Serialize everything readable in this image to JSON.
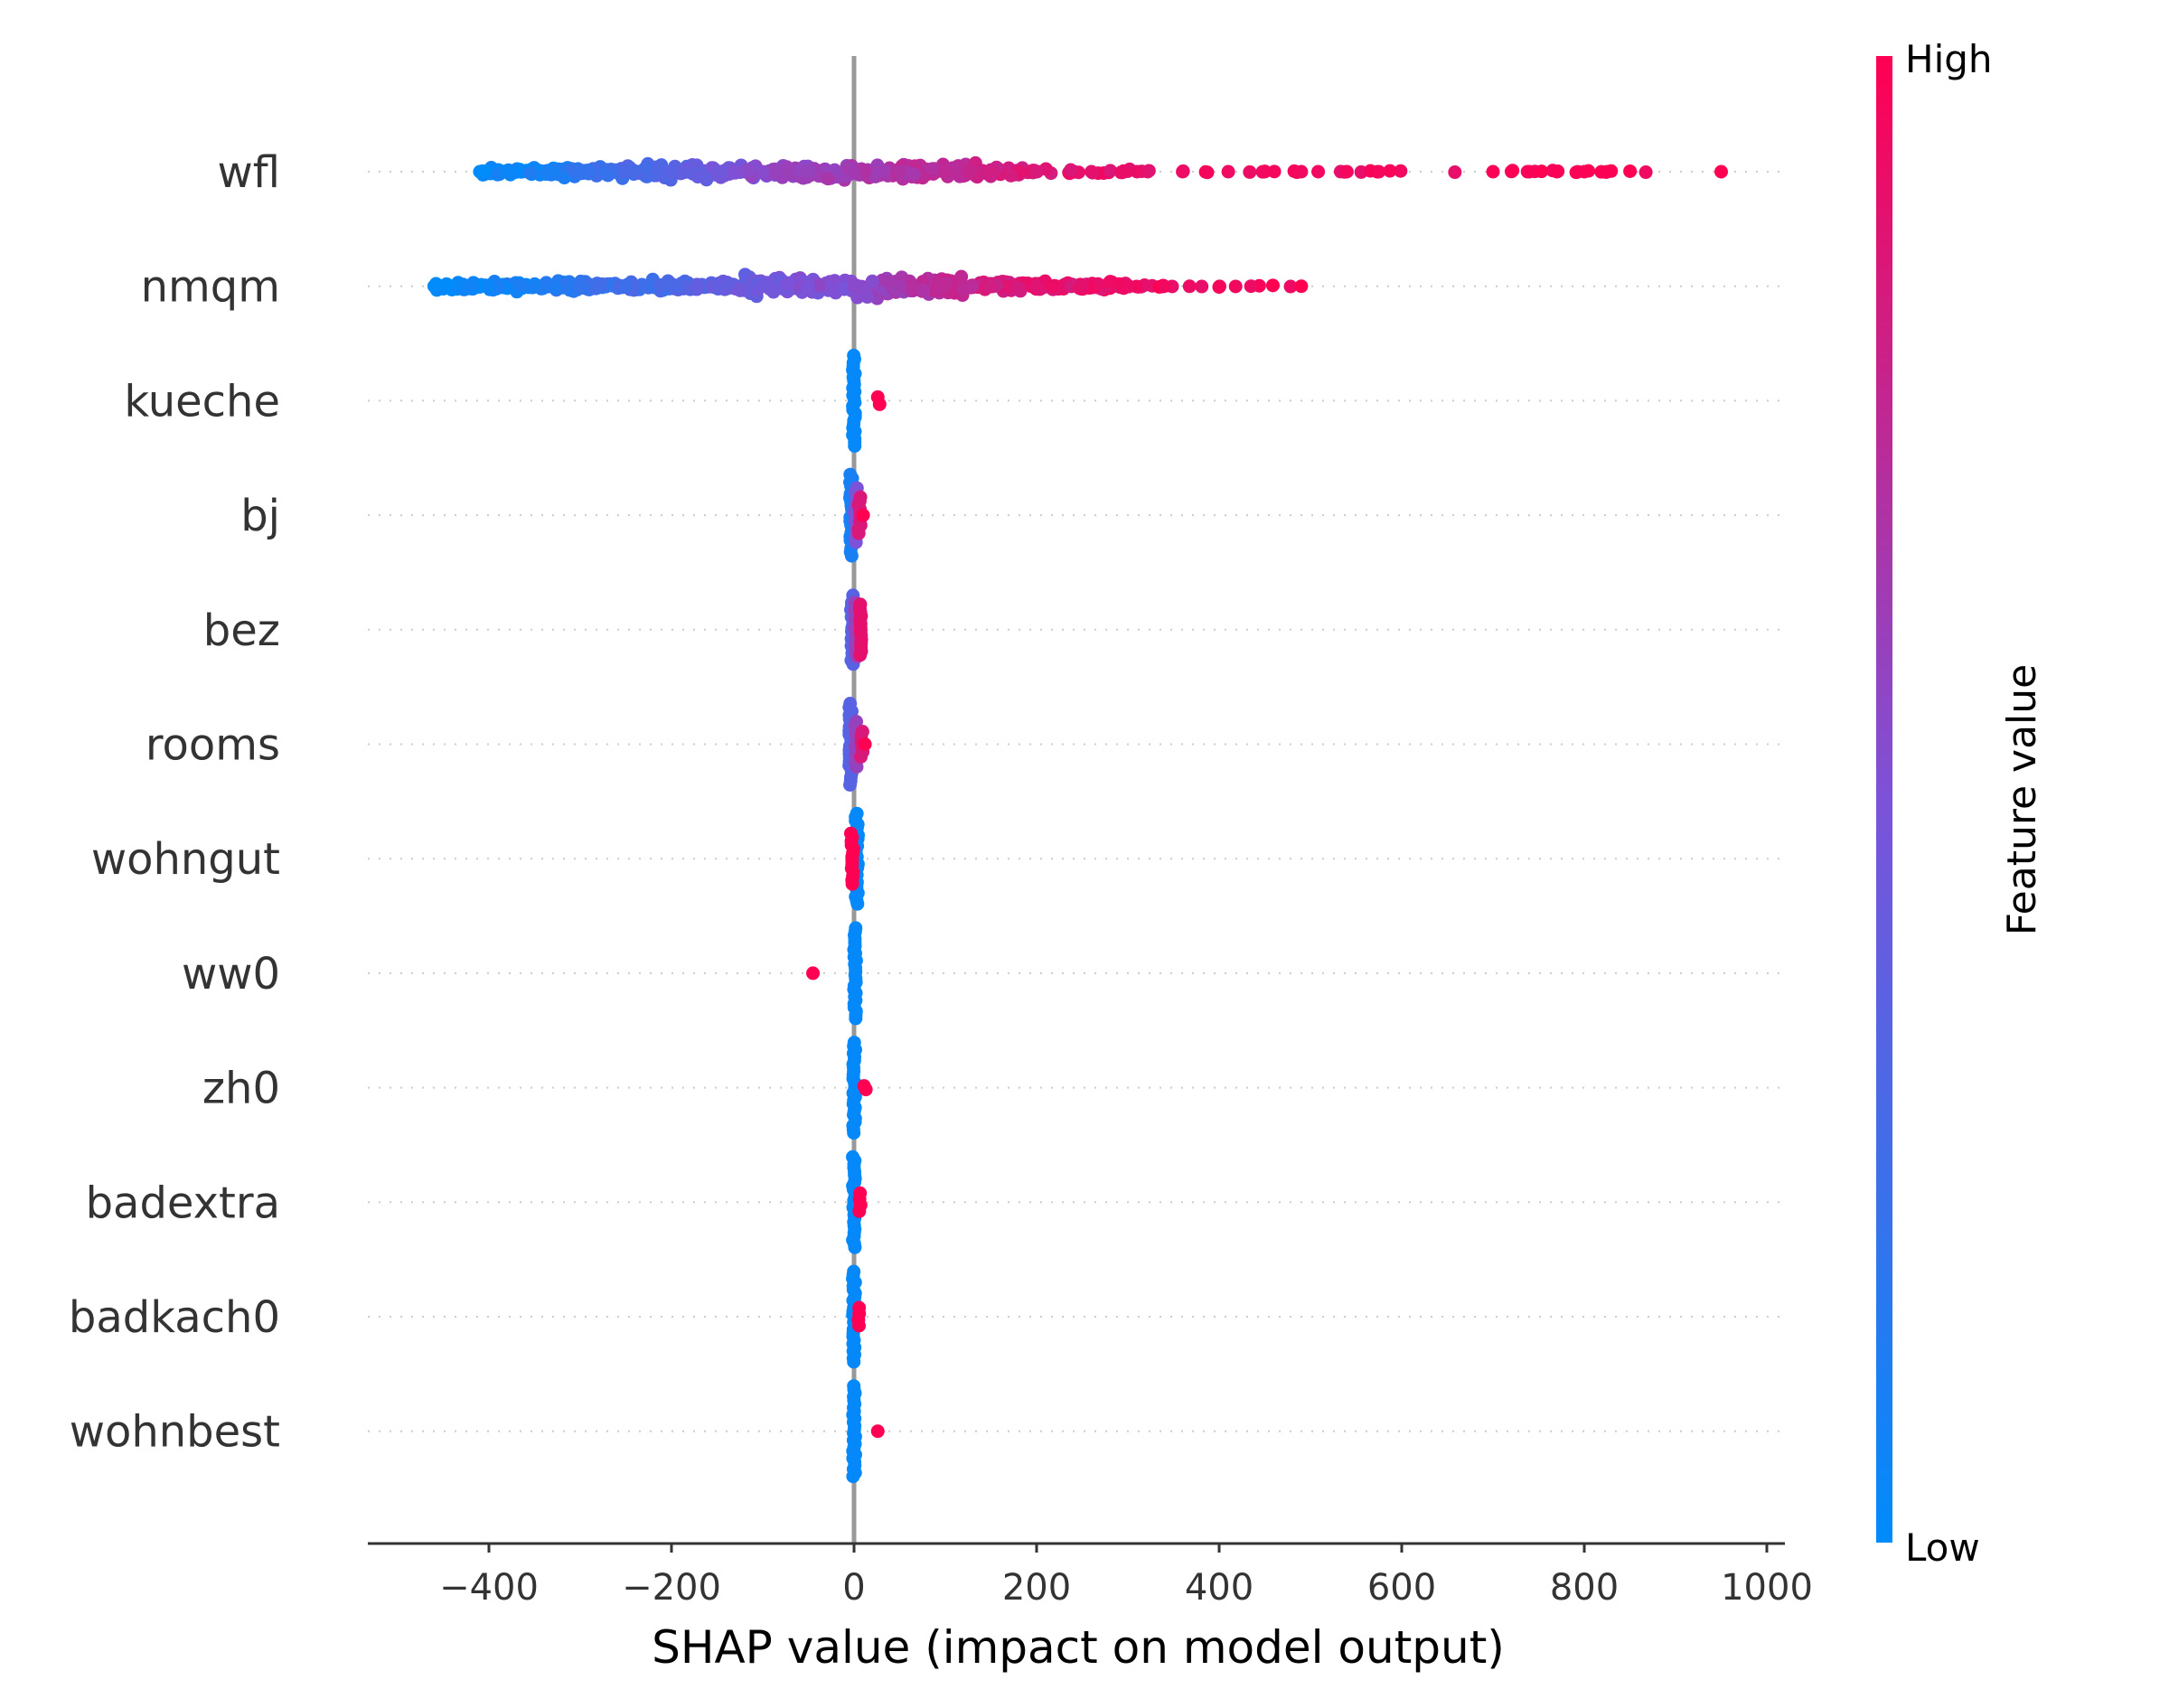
{
  "chart_data": {
    "type": "scatter",
    "subtype": "shap-beeswarm",
    "xlabel": "SHAP value (impact on model output)",
    "xlim": [
      -530,
      1020
    ],
    "x_ticks": [
      -400,
      -200,
      0,
      200,
      400,
      600,
      800,
      1000
    ],
    "x_tick_labels": [
      "−400",
      "−200",
      "0",
      "200",
      "400",
      "600",
      "800",
      "1000"
    ],
    "features": [
      "wfl",
      "nmqm",
      "kueche",
      "bj",
      "bez",
      "rooms",
      "wohngut",
      "ww0",
      "zh0",
      "badextra",
      "badkach0",
      "wohnbest"
    ],
    "colorbar": {
      "label": "Feature value",
      "high_label": "High",
      "low_label": "Low",
      "low_color": "#008bfb",
      "mid_color": "#7c52d8",
      "high_color": "#ff0052"
    },
    "zero_line_color": "#999999",
    "series": [
      {
        "feature": "wfl",
        "x_min": -410,
        "x_max": 950,
        "points_sample": [
          [
            -410,
            0.0
          ],
          [
            -380,
            0.05
          ],
          [
            -330,
            0.1
          ],
          [
            -300,
            0.2
          ],
          [
            -250,
            0.3
          ],
          [
            -200,
            0.35
          ],
          [
            -150,
            0.45
          ],
          [
            -100,
            0.55
          ],
          [
            -50,
            0.6
          ],
          [
            0,
            0.65
          ],
          [
            50,
            0.7
          ],
          [
            100,
            0.75
          ],
          [
            150,
            0.82
          ],
          [
            200,
            0.85
          ],
          [
            260,
            0.9
          ],
          [
            310,
            0.92
          ],
          [
            360,
            0.93
          ],
          [
            410,
            0.94
          ],
          [
            450,
            0.95
          ],
          [
            490,
            0.95
          ],
          [
            540,
            0.96
          ],
          [
            575,
            0.96
          ],
          [
            700,
            0.98
          ],
          [
            740,
            0.98
          ],
          [
            770,
            0.98
          ],
          [
            800,
            0.99
          ],
          [
            825,
            0.99
          ],
          [
            950,
            1.0
          ]
        ]
      },
      {
        "feature": "nmqm",
        "x_min": -460,
        "x_max": 490,
        "points_sample": [
          [
            -460,
            0.0
          ],
          [
            -400,
            0.05
          ],
          [
            -350,
            0.1
          ],
          [
            -300,
            0.2
          ],
          [
            -250,
            0.25
          ],
          [
            -200,
            0.3
          ],
          [
            -150,
            0.4
          ],
          [
            -100,
            0.45
          ],
          [
            -50,
            0.5
          ],
          [
            0,
            0.55
          ],
          [
            50,
            0.65
          ],
          [
            100,
            0.75
          ],
          [
            150,
            0.82
          ],
          [
            200,
            0.88
          ],
          [
            250,
            0.9
          ],
          [
            300,
            0.93
          ],
          [
            340,
            0.95
          ],
          [
            490,
            1.0
          ]
        ]
      },
      {
        "feature": "kueche",
        "x_min": -3,
        "x_max": 28,
        "points_sample": [
          [
            0,
            0.0
          ],
          [
            0,
            0.0
          ],
          [
            27,
            1.0
          ]
        ]
      },
      {
        "feature": "bj",
        "x_min": -8,
        "x_max": 12,
        "points_sample": [
          [
            -5,
            0.1
          ],
          [
            -3,
            0.3
          ],
          [
            0,
            0.5
          ],
          [
            4,
            0.8
          ],
          [
            8,
            0.95
          ],
          [
            10,
            1.0
          ]
        ]
      },
      {
        "feature": "bez",
        "x_min": -5,
        "x_max": 12,
        "points_sample": [
          [
            -3,
            0.3
          ],
          [
            0,
            0.5
          ],
          [
            4,
            0.7
          ],
          [
            8,
            0.9
          ],
          [
            10,
            1.0
          ]
        ]
      },
      {
        "feature": "rooms",
        "x_min": -8,
        "x_max": 15,
        "points_sample": [
          [
            -5,
            0.2
          ],
          [
            -2,
            0.4
          ],
          [
            2,
            0.6
          ],
          [
            6,
            0.8
          ],
          [
            12,
            1.0
          ]
        ]
      },
      {
        "feature": "wohngut",
        "x_min": -5,
        "x_max": 5,
        "points_sample": [
          [
            3,
            0.0
          ],
          [
            -3,
            1.0
          ]
        ]
      },
      {
        "feature": "ww0",
        "x_min": -45,
        "x_max": 2,
        "points_sample": [
          [
            1,
            0.0
          ],
          [
            -45,
            1.0
          ]
        ]
      },
      {
        "feature": "zh0",
        "x_min": -2,
        "x_max": 14,
        "points_sample": [
          [
            0,
            0.0
          ],
          [
            12,
            1.0
          ]
        ]
      },
      {
        "feature": "badextra",
        "x_min": -2,
        "x_max": 10,
        "points_sample": [
          [
            0,
            0.0
          ],
          [
            8,
            1.0
          ]
        ]
      },
      {
        "feature": "badkach0",
        "x_min": -2,
        "x_max": 8,
        "points_sample": [
          [
            0,
            0.0
          ],
          [
            6,
            1.0
          ]
        ]
      },
      {
        "feature": "wohnbest",
        "x_min": -2,
        "x_max": 27,
        "points_sample": [
          [
            0,
            0.0
          ],
          [
            26,
            1.0
          ]
        ]
      }
    ]
  }
}
